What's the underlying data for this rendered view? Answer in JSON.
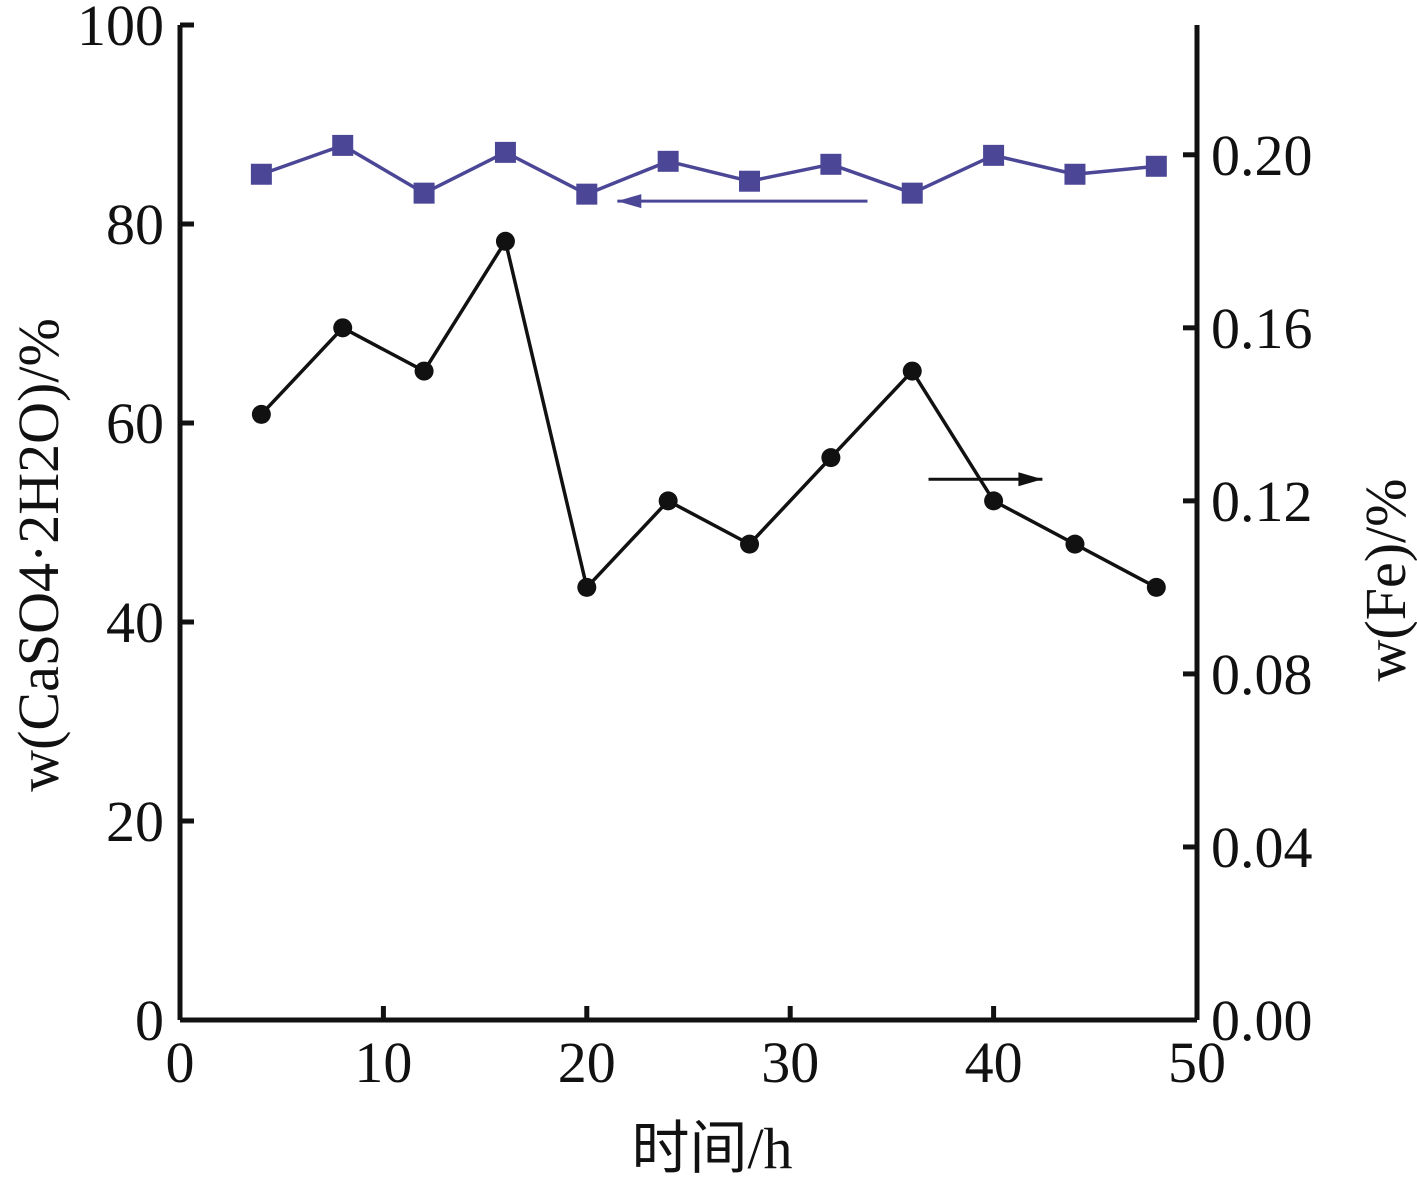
{
  "chart_data": {
    "type": "line",
    "xlabel": "时间/h",
    "ylabel_left": "w(CaSO4·2H2O)/%",
    "ylabel_right": "w(Fe)/%",
    "xlim": [
      0,
      50
    ],
    "ylim_left": [
      0,
      100
    ],
    "ylim_right": [
      0,
      0.23
    ],
    "x_ticks": [
      "0",
      "10",
      "20",
      "30",
      "40",
      "50"
    ],
    "y_left_ticks": [
      "0",
      "20",
      "40",
      "60",
      "80",
      "100"
    ],
    "y_right_ticks": [
      "0.00",
      "0.04",
      "0.08",
      "0.12",
      "0.16",
      "0.20"
    ],
    "grid": false,
    "colors": {
      "caso4": "#4b4796",
      "fe": "#111111"
    },
    "series": [
      {
        "axis": "left",
        "marker": "square",
        "x": [
          4,
          8,
          12,
          16,
          20,
          24,
          28,
          32,
          36,
          40,
          44,
          48
        ],
        "values": [
          85.0,
          87.9,
          83.1,
          87.2,
          83.0,
          86.3,
          84.3,
          86.0,
          83.1,
          86.9,
          85.0,
          85.8
        ]
      },
      {
        "axis": "right",
        "marker": "circle",
        "x": [
          4,
          8,
          12,
          16,
          20,
          24,
          28,
          32,
          36,
          40,
          44,
          48
        ],
        "values": [
          0.14,
          0.16,
          0.15,
          0.18,
          0.1,
          0.12,
          0.11,
          0.13,
          0.15,
          0.12,
          0.11,
          0.1
        ]
      }
    ],
    "annotations": [
      {
        "type": "arrow",
        "points_to": "left axis",
        "series": "caso4"
      },
      {
        "type": "arrow",
        "points_to": "right axis",
        "series": "fe"
      }
    ]
  }
}
